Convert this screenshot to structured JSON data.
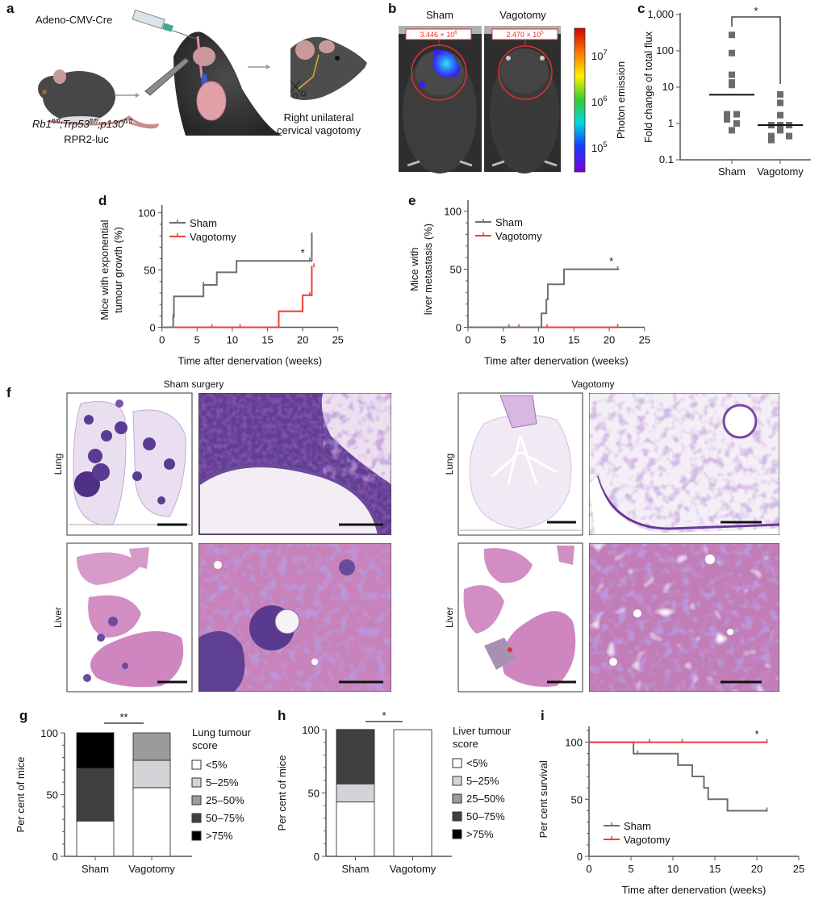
{
  "figure": {
    "panel_labels": {
      "a": "a",
      "b": "b",
      "c": "c",
      "d": "d",
      "e": "e",
      "f": "f",
      "g": "g",
      "h": "h",
      "i": "i"
    },
    "panel_a": {
      "injection": "Adeno-CMV-Cre",
      "genotype": [
        {
          "gene": "Rb1",
          "allele": "fl/fl"
        },
        {
          "gene": ";Trp53",
          "allele": "fl/fl"
        },
        {
          "gene": ";p130",
          "allele": "fl/fl"
        }
      ],
      "strain": "RPR2-luc",
      "procedure": [
        "Right unilateral",
        "cervical vagotomy"
      ]
    },
    "panel_b": {
      "titles": [
        "Sham",
        "Vagotomy"
      ],
      "roi_values": [
        {
          "mantissa": "3.446 × 10",
          "exponent": "6"
        },
        {
          "mantissa": "2.470 × 10",
          "exponent": "5"
        }
      ],
      "colorbar_label": "Photon emission",
      "colorbar_ticks": [
        {
          "base": "10",
          "exponent": "7"
        },
        {
          "base": "10",
          "exponent": "6"
        },
        {
          "base": "10",
          "exponent": "5"
        }
      ],
      "colormap": [
        "#d40000",
        "#ff7f00",
        "#ffee00",
        "#33cc33",
        "#00d8e0",
        "#1a3cff",
        "#7a00d8"
      ]
    },
    "panel_f": {
      "column_titles": [
        "Sham surgery",
        "Vagotomy"
      ],
      "row_labels": [
        "Lung",
        "Liver"
      ]
    }
  },
  "chart_data": [
    {
      "id": "c",
      "type": "scatter",
      "title": "",
      "xlabel": "",
      "ylabel": "Fold change of total flux",
      "yscale": "log",
      "ylim": [
        0.1,
        1000
      ],
      "yticks": {
        "values": [
          0.1,
          1,
          10,
          100,
          1000
        ],
        "labels": [
          "0.1",
          "1",
          "10",
          "100",
          "1,000"
        ]
      },
      "categories": [
        "Sham",
        "Vagotomy"
      ],
      "series": [
        {
          "name": "Sham",
          "values": [
            275,
            87,
            22,
            13.5,
            11.5,
            1.8,
            1.8,
            1.3,
            1.0,
            0.65
          ],
          "median": 6.2
        },
        {
          "name": "Vagotomy",
          "values": [
            6.3,
            3.7,
            1.7,
            0.9,
            0.9,
            0.9,
            0.65,
            0.45,
            0.45,
            0.35
          ],
          "median": 0.9
        }
      ],
      "significance": "*",
      "color": "#6b6b6b"
    },
    {
      "id": "d",
      "type": "line",
      "step": true,
      "title": "",
      "xlabel": "Time after denervation (weeks)",
      "ylabel": [
        "Mice with exponential",
        "tumour growth (%)"
      ],
      "xlim": [
        0,
        25
      ],
      "ylim": [
        0,
        100
      ],
      "xticks": {
        "values": [
          0,
          5,
          10,
          15,
          20,
          25
        ],
        "labels": [
          "0",
          "5",
          "10",
          "15",
          "20",
          "25"
        ]
      },
      "yticks": {
        "values": [
          0,
          50,
          100
        ],
        "labels": [
          "0",
          "50",
          "100"
        ]
      },
      "series": [
        {
          "name": "Sham",
          "color": "#6f6f6f",
          "x": [
            0,
            1.6,
            1.7,
            5.9,
            7.8,
            10.6,
            21.3
          ],
          "y": [
            0,
            9,
            27,
            37,
            48,
            58,
            82
          ],
          "censored": [
            1.6,
            5.9,
            21.0
          ]
        },
        {
          "name": "Vagotomy",
          "color": "#f03c3c",
          "x": [
            0,
            16.6,
            20.0,
            21.3
          ],
          "y": [
            0,
            14,
            28,
            53
          ],
          "censored": [
            7.1,
            11.1,
            21.0,
            21.6
          ]
        }
      ],
      "significance": {
        "label": "*",
        "x": 20.0,
        "y": 62
      },
      "legend": "top-left"
    },
    {
      "id": "e",
      "type": "line",
      "step": true,
      "title": "",
      "xlabel": "Time after denervation (weeks)",
      "ylabel": [
        "Mice with",
        "liver metastasis (%)"
      ],
      "xlim": [
        0,
        25
      ],
      "ylim": [
        0,
        100
      ],
      "xticks": {
        "values": [
          0,
          5,
          10,
          15,
          20,
          25
        ],
        "labels": [
          "0",
          "5",
          "10",
          "15",
          "20",
          "25"
        ]
      },
      "yticks": {
        "values": [
          0,
          50,
          100
        ],
        "labels": [
          "0",
          "50",
          "100"
        ]
      },
      "series": [
        {
          "name": "Sham",
          "color": "#6f6f6f",
          "x": [
            0,
            10.4,
            11.1,
            11.3,
            13.6,
            21.3
          ],
          "y": [
            0,
            12,
            24,
            37,
            50,
            50
          ],
          "censored": [
            5.8,
            21.2
          ]
        },
        {
          "name": "Vagotomy",
          "color": "#f03c3c",
          "x": [
            0,
            21.2
          ],
          "y": [
            0,
            0
          ],
          "censored": [
            7.2,
            11.2,
            21.2
          ]
        }
      ],
      "significance": {
        "label": "*",
        "x": 20.3,
        "y": 54
      },
      "legend": "top-left"
    },
    {
      "id": "g",
      "type": "bar",
      "stacked": true,
      "title": "",
      "xlabel": "",
      "ylabel": "Per cent of mice",
      "ylim": [
        0,
        100
      ],
      "yticks": {
        "values": [
          0,
          50,
          100
        ],
        "labels": [
          "0",
          "50",
          "100"
        ]
      },
      "categories": [
        "Sham",
        "Vagotomy"
      ],
      "legend_title": [
        "Lung tumour",
        "score"
      ],
      "series": [
        {
          "name": "<5%",
          "color": "#ffffff",
          "values": [
            28.6,
            55.6
          ]
        },
        {
          "name": "5–25%",
          "color": "#d4d4d8",
          "values": [
            0,
            22.2
          ]
        },
        {
          "name": "25–50%",
          "color": "#9b9b9b",
          "values": [
            0,
            22.2
          ]
        },
        {
          "name": "50–75%",
          "color": "#404040",
          "values": [
            42.9,
            0
          ]
        },
        {
          "name": ">75%",
          "color": "#000000",
          "values": [
            28.6,
            0
          ]
        }
      ],
      "significance": "**",
      "legend": "right"
    },
    {
      "id": "h",
      "type": "bar",
      "stacked": true,
      "title": "",
      "xlabel": "",
      "ylabel": "Per cent of mice",
      "ylim": [
        0,
        100
      ],
      "yticks": {
        "values": [
          0,
          50,
          100
        ],
        "labels": [
          "0",
          "50",
          "100"
        ]
      },
      "categories": [
        "Sham",
        "Vagotomy"
      ],
      "legend_title": [
        "Liver tumour",
        "score"
      ],
      "series": [
        {
          "name": "<5%",
          "color": "#ffffff",
          "values": [
            42.9,
            100
          ]
        },
        {
          "name": "5–25%",
          "color": "#d4d4d8",
          "values": [
            14.3,
            0
          ]
        },
        {
          "name": "25–50%",
          "color": "#9b9b9b",
          "values": [
            0,
            0
          ]
        },
        {
          "name": "50–75%",
          "color": "#404040",
          "values": [
            42.9,
            0
          ]
        },
        {
          "name": ">75%",
          "color": "#000000",
          "values": [
            0,
            0
          ]
        }
      ],
      "significance": "*",
      "legend": "right"
    },
    {
      "id": "i",
      "type": "line",
      "step": true,
      "title": "",
      "xlabel": "Time after denervation (weeks)",
      "ylabel": "Per cent survival",
      "xlim": [
        0,
        25
      ],
      "ylim": [
        0,
        100
      ],
      "xticks": {
        "values": [
          0,
          5,
          10,
          15,
          20,
          25
        ],
        "labels": [
          "0",
          "5",
          "10",
          "15",
          "20",
          "25"
        ]
      },
      "yticks": {
        "values": [
          0,
          50,
          100
        ],
        "labels": [
          "0",
          "50",
          "100"
        ]
      },
      "series": [
        {
          "name": "Sham",
          "color": "#6f6f6f",
          "x": [
            0,
            5.3,
            10.6,
            12.3,
            13.7,
            14.2,
            16.5,
            21.2
          ],
          "y": [
            100,
            90,
            80,
            70,
            60,
            50,
            40,
            40
          ],
          "censored": [
            5.8,
            21.2
          ]
        },
        {
          "name": "Vagotomy",
          "color": "#f03c3c",
          "x": [
            0,
            21.2
          ],
          "y": [
            100,
            100
          ],
          "censored": [
            7.2,
            11.1,
            21.2
          ]
        }
      ],
      "significance": {
        "label": "*",
        "x": 20.0,
        "y": 104
      },
      "legend": "bottom-left"
    }
  ]
}
